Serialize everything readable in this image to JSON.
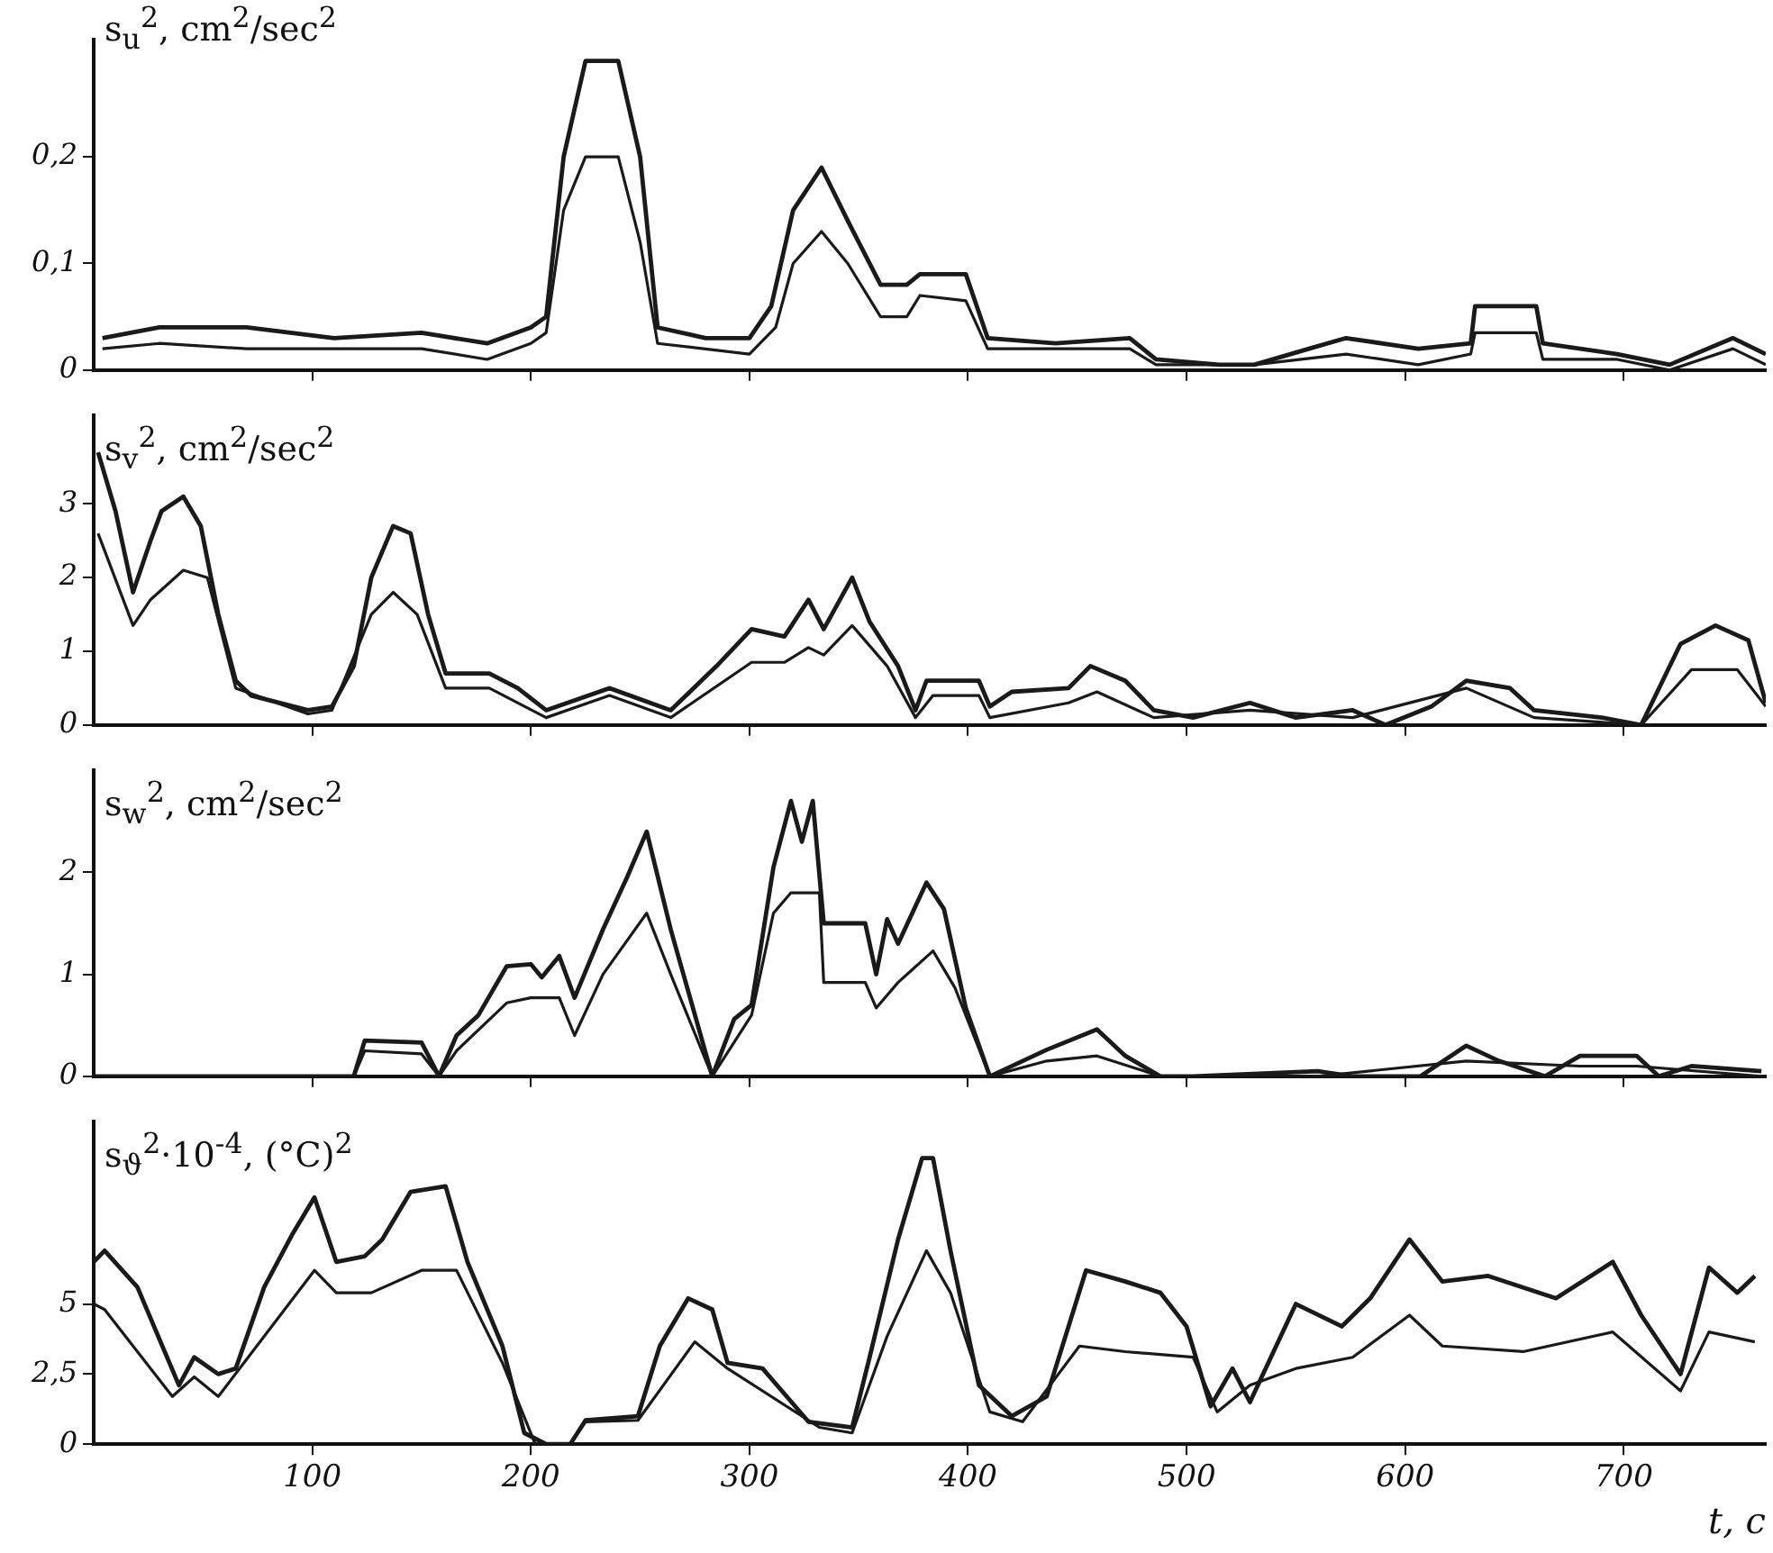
{
  "chart_data": [
    {
      "type": "line",
      "ylabel": "s$_{u}$$^{2}$, cm$^{2}$/sec$^{2}$",
      "xlim": [
        0,
        765
      ],
      "xticks": [
        100,
        200,
        300,
        400,
        500,
        600,
        700
      ],
      "ylim": [
        0,
        0.31
      ],
      "yticks": [
        0,
        {
          "value": 0.1,
          "label": "0,1"
        },
        {
          "value": 0.2,
          "label": "0,2"
        }
      ],
      "tick_labels": "y",
      "grid": false,
      "series": [
        {
          "color": "#1a1a1a",
          "x": [
            4,
            30,
            70,
            110,
            150,
            180,
            200,
            207,
            215,
            225,
            240,
            250,
            258,
            280,
            300,
            310,
            320,
            333,
            345,
            360,
            372,
            378,
            383,
            399,
            409,
            440,
            474,
            486,
            515,
            531,
            556,
            573,
            606,
            630,
            632,
            660,
            663,
            697,
            721,
            750,
            765
          ],
          "values": [
            0.03,
            0.04,
            0.04,
            0.03,
            0.035,
            0.025,
            0.04,
            0.05,
            0.2,
            0.29,
            0.29,
            0.2,
            0.04,
            0.03,
            0.03,
            0.06,
            0.15,
            0.19,
            0.14,
            0.08,
            0.08,
            0.09,
            0.09,
            0.09,
            0.03,
            0.025,
            0.03,
            0.01,
            0.005,
            0.005,
            0.02,
            0.03,
            0.02,
            0.025,
            0.06,
            0.06,
            0.025,
            0.015,
            0.005,
            0.03,
            0.015
          ]
        },
        {
          "color": "#1a1a1a",
          "x": [
            4,
            30,
            70,
            110,
            150,
            180,
            200,
            207,
            215,
            225,
            240,
            250,
            258,
            300,
            312,
            320,
            333,
            345,
            360,
            372,
            378,
            399,
            409,
            474,
            486,
            531,
            573,
            606,
            630,
            632,
            660,
            663,
            697,
            721,
            750,
            765
          ],
          "values": [
            0.02,
            0.025,
            0.02,
            0.02,
            0.02,
            0.01,
            0.025,
            0.035,
            0.15,
            0.2,
            0.2,
            0.12,
            0.025,
            0.015,
            0.04,
            0.1,
            0.13,
            0.1,
            0.05,
            0.05,
            0.07,
            0.065,
            0.02,
            0.02,
            0.005,
            0.005,
            0.015,
            0.005,
            0.015,
            0.035,
            0.035,
            0.01,
            0.01,
            0,
            0.02,
            0.005
          ]
        }
      ]
    },
    {
      "type": "line",
      "ylabel": "s$_{v}$$^{2}$, cm$^{2}$/sec$^{2}$",
      "xlim": [
        0,
        765
      ],
      "xticks": [
        100,
        200,
        300,
        400,
        500,
        600,
        700
      ],
      "ylim": [
        0,
        4.2
      ],
      "yticks": [
        0,
        1,
        2,
        3
      ],
      "tick_labels": "y",
      "grid": false,
      "series": [
        {
          "color": "#1a1a1a",
          "x": [
            2,
            10,
            18,
            26,
            31,
            41,
            49,
            57,
            65,
            72,
            98,
            109,
            119,
            127,
            137,
            145,
            153,
            161,
            181,
            194,
            207,
            236,
            264,
            285,
            301,
            316,
            327,
            334,
            347,
            355,
            368,
            376,
            381,
            405,
            410,
            420,
            446,
            456,
            472,
            485,
            503,
            529,
            550,
            576,
            591,
            612,
            628,
            648,
            659,
            690,
            708,
            726,
            742,
            757,
            765
          ],
          "values": [
            3.7,
            2.9,
            1.8,
            2.5,
            2.9,
            3.1,
            2.7,
            1.5,
            0.6,
            0.4,
            0.2,
            0.25,
            0.8,
            2.0,
            2.7,
            2.6,
            1.5,
            0.7,
            0.7,
            0.5,
            0.2,
            0.5,
            0.2,
            0.8,
            1.3,
            1.2,
            1.7,
            1.3,
            2.0,
            1.4,
            0.8,
            0.2,
            0.6,
            0.6,
            0.25,
            0.45,
            0.5,
            0.8,
            0.6,
            0.2,
            0.1,
            0.3,
            0.1,
            0.2,
            0,
            0.25,
            0.6,
            0.5,
            0.2,
            0.1,
            0,
            1.1,
            1.35,
            1.15,
            0.3
          ]
        },
        {
          "color": "#1a1a1a",
          "x": [
            2,
            18,
            26,
            41,
            52,
            65,
            98,
            109,
            127,
            137,
            148,
            161,
            181,
            207,
            236,
            264,
            301,
            316,
            327,
            334,
            347,
            363,
            376,
            384,
            405,
            410,
            446,
            459,
            485,
            529,
            576,
            628,
            659,
            708,
            731,
            752,
            765
          ],
          "values": [
            2.6,
            1.35,
            1.7,
            2.1,
            2.0,
            0.5,
            0.15,
            0.2,
            1.5,
            1.8,
            1.5,
            0.5,
            0.5,
            0.1,
            0.4,
            0.1,
            0.85,
            0.85,
            1.05,
            0.95,
            1.35,
            0.8,
            0.1,
            0.4,
            0.4,
            0.1,
            0.3,
            0.45,
            0.1,
            0.2,
            0.1,
            0.5,
            0.1,
            0,
            0.75,
            0.75,
            0.25
          ]
        }
      ]
    },
    {
      "type": "line",
      "ylabel": "s$_{w}$$^{2}$, cm$^{2}$/sec$^{2}$",
      "xlim": [
        0,
        765
      ],
      "xticks": [
        100,
        200,
        300,
        400,
        500,
        600,
        700
      ],
      "ylim": [
        0,
        3
      ],
      "yticks": [
        0,
        1,
        2
      ],
      "tick_labels": "y",
      "grid": false,
      "series": [
        {
          "color": "#1a1a1a",
          "x": [
            0,
            119,
            124,
            150,
            158,
            166,
            176,
            189,
            200,
            205,
            213,
            220,
            233,
            244,
            253,
            264,
            283,
            293,
            301,
            311,
            319,
            324,
            329,
            334,
            353,
            358,
            363,
            368,
            381,
            389,
            399,
            410,
            436,
            459,
            472,
            488,
            503,
            560,
            576,
            607,
            628,
            643,
            664,
            680,
            706,
            716,
            731,
            763
          ],
          "values": [
            0,
            0,
            0.35,
            0.33,
            0,
            0.4,
            0.6,
            1.08,
            1.1,
            0.97,
            1.18,
            0.77,
            1.44,
            1.95,
            2.4,
            1.44,
            0,
            0.56,
            0.7,
            2.05,
            2.7,
            2.3,
            2.7,
            1.5,
            1.5,
            1.0,
            1.54,
            1.3,
            1.9,
            1.64,
            0.67,
            0,
            0.26,
            0.46,
            0.2,
            0,
            0,
            0.05,
            0,
            0,
            0.3,
            0.15,
            0,
            0.2,
            0.2,
            0,
            0.1,
            0.05
          ]
        },
        {
          "color": "#1a1a1a",
          "x": [
            0,
            119,
            124,
            150,
            158,
            166,
            189,
            200,
            213,
            220,
            233,
            253,
            264,
            283,
            301,
            311,
            319,
            332,
            334,
            353,
            358,
            368,
            384,
            394,
            410,
            436,
            459,
            488,
            560,
            628,
            680,
            706,
            763
          ],
          "values": [
            0,
            0,
            0.25,
            0.22,
            0,
            0.25,
            0.72,
            0.77,
            0.77,
            0.4,
            1.0,
            1.6,
            1.0,
            0,
            0.6,
            1.6,
            1.8,
            1.8,
            0.92,
            0.92,
            0.67,
            0.92,
            1.23,
            0.87,
            0,
            0.15,
            0.2,
            0,
            0,
            0.15,
            0.1,
            0.1,
            0
          ]
        }
      ]
    },
    {
      "type": "line",
      "ylabel": "s$_{ϑ}$$^{2}$·10$^{-4}$, (°C)$^{2}$",
      "xlabel": "t, с",
      "xlim": [
        0,
        765
      ],
      "xticks": [
        100,
        200,
        300,
        400,
        500,
        600,
        700
      ],
      "ylim": [
        0,
        11.5
      ],
      "yticks": [
        0,
        {
          "value": 2.5,
          "label": "2,5"
        },
        5
      ],
      "grid": false,
      "series": [
        {
          "color": "#1a1a1a",
          "x": [
            0,
            5,
            20,
            39,
            46,
            57,
            65,
            78,
            91,
            101,
            111,
            124,
            132,
            145,
            161,
            171,
            187,
            197,
            207,
            218,
            225,
            249,
            259,
            272,
            283,
            290,
            306,
            327,
            347,
            355,
            368,
            379,
            384,
            392,
            405,
            420,
            436,
            454,
            472,
            488,
            500,
            511,
            521,
            529,
            550,
            571,
            584,
            602,
            617,
            638,
            669,
            695,
            708,
            726,
            739,
            752,
            760
          ],
          "values": [
            6.5,
            6.9,
            5.6,
            2.1,
            3.1,
            2.5,
            2.7,
            5.6,
            7.5,
            8.8,
            6.5,
            6.7,
            7.3,
            9.0,
            9.2,
            6.5,
            3.5,
            0.4,
            0,
            0,
            0.85,
            1.0,
            3.5,
            5.2,
            4.8,
            2.9,
            2.7,
            0.8,
            0.6,
            3.1,
            7.3,
            10.2,
            10.2,
            6.9,
            2.1,
            1.0,
            1.7,
            6.2,
            5.8,
            5.4,
            4.2,
            1.35,
            2.7,
            1.5,
            5.0,
            4.2,
            5.2,
            7.3,
            5.8,
            6.0,
            5.2,
            6.5,
            4.6,
            2.5,
            6.3,
            5.4,
            6.0
          ]
        },
        {
          "color": "#1a1a1a",
          "x": [
            0,
            5,
            36,
            46,
            57,
            101,
            111,
            127,
            150,
            166,
            187,
            202,
            218,
            225,
            249,
            275,
            290,
            332,
            347,
            363,
            381,
            392,
            410,
            425,
            451,
            472,
            503,
            514,
            529,
            550,
            576,
            602,
            617,
            654,
            695,
            726,
            739,
            760
          ],
          "values": [
            5.0,
            4.8,
            1.7,
            2.4,
            1.7,
            6.2,
            5.4,
            5.4,
            6.2,
            6.2,
            2.9,
            0,
            0,
            0.8,
            0.85,
            3.65,
            2.7,
            0.6,
            0.4,
            3.85,
            6.9,
            5.4,
            1.15,
            0.8,
            3.5,
            3.3,
            3.1,
            1.15,
            2.1,
            2.7,
            3.1,
            4.6,
            3.5,
            3.3,
            4.0,
            1.9,
            4.0,
            3.65
          ]
        }
      ]
    }
  ]
}
